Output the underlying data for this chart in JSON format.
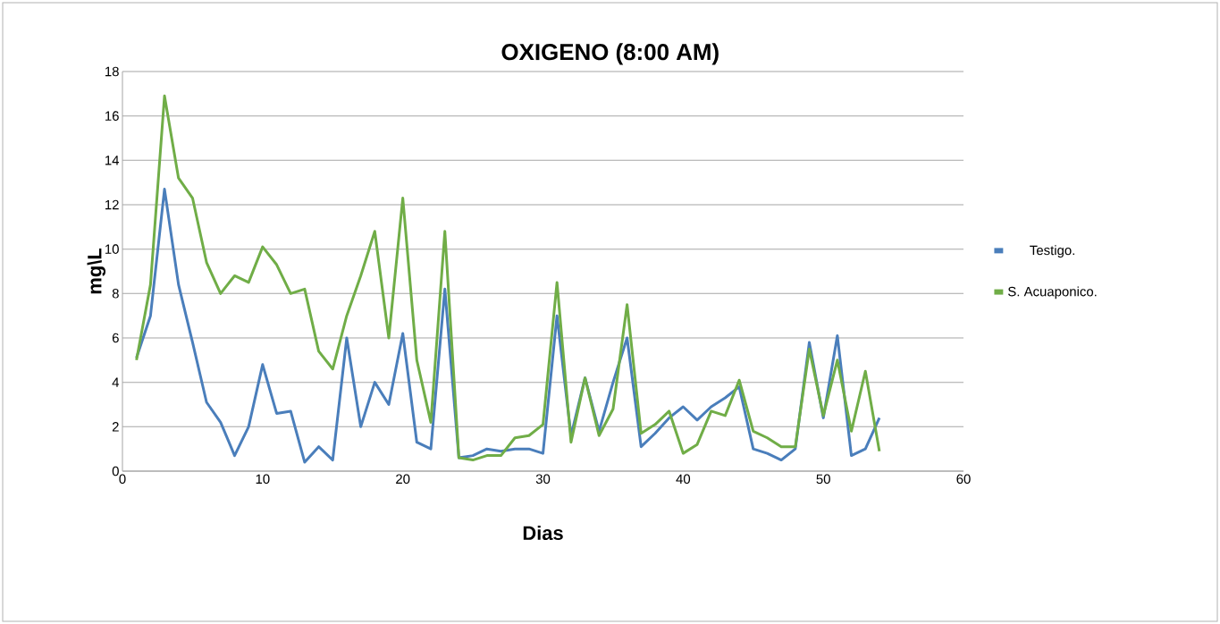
{
  "chart_data": {
    "type": "line",
    "title": "OXIGENO (8:00 AM)",
    "xlabel": "Dias",
    "ylabel": "mg\\L",
    "x": [
      1,
      2,
      3,
      4,
      5,
      6,
      7,
      8,
      9,
      10,
      11,
      12,
      13,
      14,
      15,
      16,
      17,
      18,
      19,
      20,
      21,
      22,
      23,
      24,
      25,
      26,
      27,
      28,
      29,
      30,
      31,
      32,
      33,
      34,
      35,
      36,
      37,
      38,
      39,
      40,
      41,
      42,
      43,
      44,
      45,
      46,
      47,
      48,
      49,
      50,
      51,
      52,
      53,
      54
    ],
    "series": [
      {
        "name": "Testigo.",
        "color": "#4a7ebb",
        "values": [
          5.1,
          7.0,
          12.7,
          8.4,
          5.8,
          3.1,
          2.2,
          0.7,
          2.0,
          4.8,
          2.6,
          2.7,
          0.4,
          1.1,
          0.5,
          6.0,
          2.0,
          4.0,
          3.0,
          6.2,
          1.3,
          1.0,
          8.2,
          0.6,
          0.7,
          1.0,
          0.9,
          1.0,
          1.0,
          0.8,
          7.0,
          1.6,
          4.2,
          1.8,
          4.0,
          6.0,
          1.1,
          1.7,
          2.4,
          2.9,
          2.3,
          2.9,
          3.3,
          3.8,
          1.0,
          0.8,
          0.5,
          1.0,
          5.8,
          2.4,
          6.1,
          0.7,
          1.0,
          2.4
        ]
      },
      {
        "name": "S. Acuaponico.",
        "color": "#70ad47",
        "values": [
          5.0,
          8.4,
          16.9,
          13.2,
          12.3,
          9.4,
          8.0,
          8.8,
          8.5,
          10.1,
          9.3,
          8.0,
          8.2,
          5.4,
          4.6,
          7.0,
          8.8,
          10.8,
          6.0,
          12.3,
          5.0,
          2.2,
          10.8,
          0.6,
          0.5,
          0.7,
          0.7,
          1.5,
          1.6,
          2.1,
          8.5,
          1.3,
          4.2,
          1.6,
          2.8,
          7.5,
          1.7,
          2.1,
          2.7,
          0.8,
          1.2,
          2.7,
          2.5,
          4.1,
          1.8,
          1.5,
          1.1,
          1.1,
          5.5,
          2.5,
          5.0,
          1.8,
          4.5,
          0.9
        ]
      }
    ],
    "xlim": [
      0,
      60
    ],
    "xticks": [
      0,
      10,
      20,
      30,
      40,
      50,
      60
    ],
    "ylim": [
      0,
      18
    ],
    "yticks": [
      0,
      2,
      4,
      6,
      8,
      10,
      12,
      14,
      16,
      18
    ],
    "grid": "y",
    "legend": "right",
    "marker": "none",
    "line_style": "solid"
  }
}
